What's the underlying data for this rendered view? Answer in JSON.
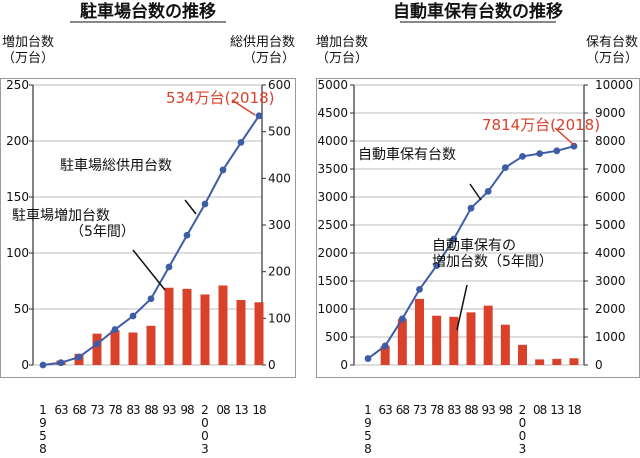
{
  "chart_data": [
    {
      "type": "bar",
      "title": "駐車場台数の推移",
      "left_axis_label": [
        "増加台数",
        "（万台）"
      ],
      "right_axis_label": [
        "総供用台数",
        "（万台）"
      ],
      "left_ylim": [
        0,
        250
      ],
      "left_ticks": [
        "0",
        "50",
        "100",
        "150",
        "200",
        "250"
      ],
      "right_ylim": [
        0,
        600
      ],
      "right_ticks": [
        "0",
        "100",
        "200",
        "300",
        "400",
        "500",
        "600"
      ],
      "x_tick_labels": [
        "1958",
        "63",
        "68",
        "73",
        "78",
        "83",
        "88",
        "93",
        "98",
        "2003",
        "08",
        "13",
        "18"
      ],
      "grid": "horizontal",
      "series": [
        {
          "name": "駐車場総供用台数",
          "kind": "line",
          "axis": "right",
          "x": [
            1958,
            1963,
            1968,
            1973,
            1978,
            1983,
            1988,
            1993,
            1998,
            2003,
            2008,
            2013,
            2018
          ],
          "values": [
            0,
            5,
            17,
            45,
            76,
            105,
            142,
            210,
            278,
            345,
            418,
            477,
            534
          ]
        },
        {
          "name": "駐車場増加台数（5年間）",
          "kind": "bar",
          "axis": "left",
          "x": [
            1963,
            1968,
            1973,
            1978,
            1983,
            1988,
            1993,
            1998,
            2003,
            2008,
            2013,
            2018
          ],
          "values": [
            4,
            10,
            28,
            31,
            29,
            35,
            69,
            68,
            63,
            71,
            58,
            56
          ]
        }
      ],
      "labels": {
        "line": "駐車場総供用台数",
        "bar": [
          "駐車場増加台数",
          "（5年間）"
        ],
        "callout": "534万台(2018)"
      }
    },
    {
      "type": "bar",
      "title": "自動車保有台数の推移",
      "left_axis_label": [
        "増加台数",
        "（万台）"
      ],
      "right_axis_label": [
        "保有台数",
        "（万台）"
      ],
      "left_ylim": [
        0,
        5000
      ],
      "left_ticks": [
        "0",
        "500",
        "1000",
        "1500",
        "2000",
        "2500",
        "3000",
        "3500",
        "4000",
        "4500",
        "5000"
      ],
      "right_ylim": [
        0,
        10000
      ],
      "right_ticks": [
        "0",
        "1000",
        "2000",
        "3000",
        "4000",
        "5000",
        "6000",
        "7000",
        "8000",
        "9000",
        "10000"
      ],
      "x_tick_labels": [
        "1958",
        "63",
        "68",
        "73",
        "78",
        "83",
        "88",
        "93",
        "98",
        "2003",
        "08",
        "13",
        "18"
      ],
      "grid": "horizontal",
      "series": [
        {
          "name": "自動車保有台数",
          "kind": "line",
          "axis": "right",
          "x": [
            1958,
            1963,
            1968,
            1973,
            1978,
            1983,
            1988,
            1993,
            1998,
            2003,
            2008,
            2013,
            2018
          ],
          "values": [
            230,
            680,
            1650,
            2700,
            3550,
            4500,
            5600,
            6200,
            7050,
            7450,
            7550,
            7650,
            7814
          ]
        },
        {
          "name": "自動車保有の増加台数（5年間）",
          "kind": "bar",
          "axis": "left",
          "x": [
            1963,
            1968,
            1973,
            1978,
            1983,
            1988,
            1993,
            1998,
            2003,
            2008,
            2013,
            2018
          ],
          "values": [
            340,
            820,
            1180,
            880,
            860,
            940,
            1060,
            720,
            360,
            100,
            110,
            120
          ]
        }
      ],
      "labels": {
        "line": "自動車保有台数",
        "bar": [
          "自動車保有の",
          "増加台数（5年間）"
        ],
        "callout": "7814万台(2018)"
      }
    }
  ],
  "colors": {
    "line": "#3f5da6",
    "bar": "#d8412a",
    "callout": "#d8412a",
    "grid": "#bdbdbd",
    "axis": "#333333",
    "frame": "#9a9a9a"
  }
}
